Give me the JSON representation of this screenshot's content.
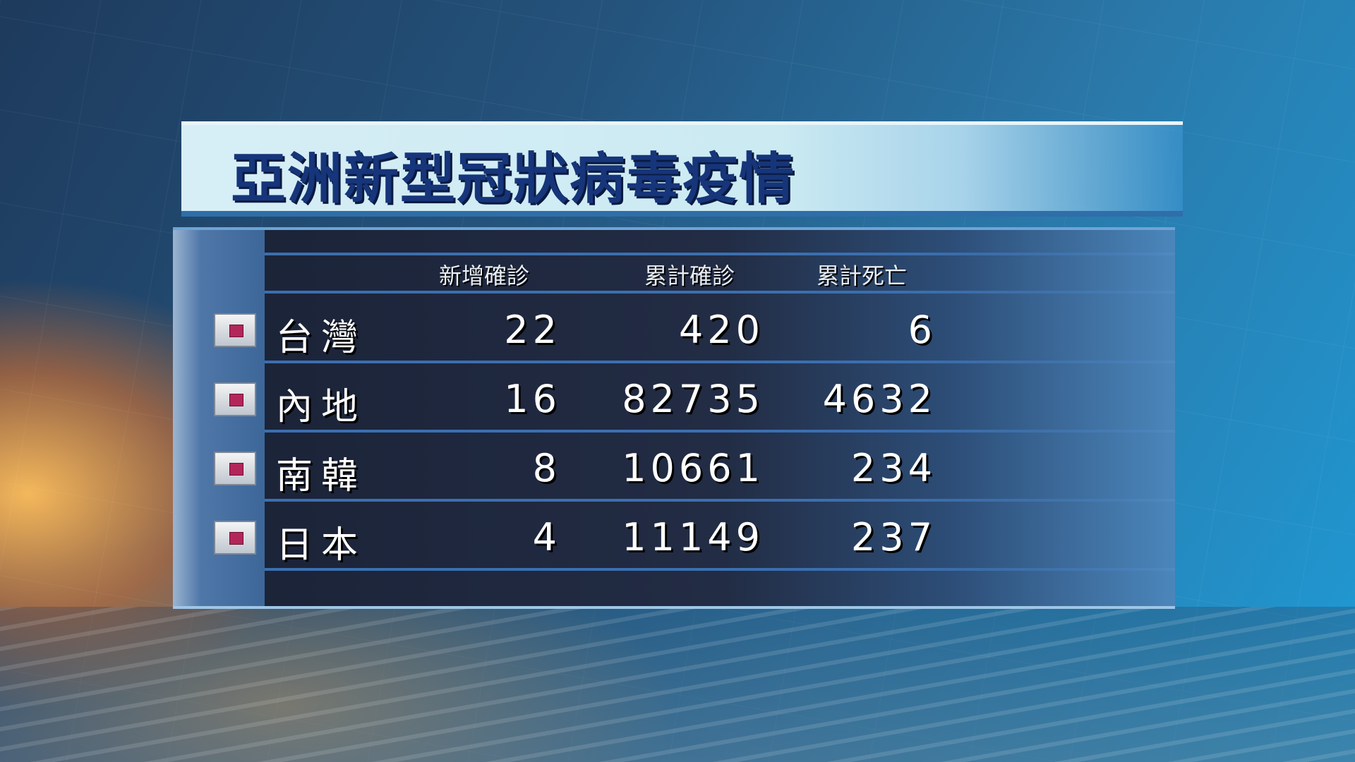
{
  "title": "亞洲新型冠狀病毒疫情",
  "colors": {
    "title_text": "#16357a",
    "bullet": "#b3265a",
    "panel": "#222c44"
  },
  "chart_data": {
    "type": "table",
    "title": "亞洲新型冠狀病毒疫情",
    "columns": [
      "",
      "新增確診",
      "累計確診",
      "累計死亡"
    ],
    "rows": [
      {
        "region": "台灣",
        "new": "22",
        "total": "420",
        "deaths": "6"
      },
      {
        "region": "內地",
        "new": "16",
        "total": "82735",
        "deaths": "4632"
      },
      {
        "region": "南韓",
        "new": "8",
        "total": "10661",
        "deaths": "234"
      },
      {
        "region": "日本",
        "new": "4",
        "total": "11149",
        "deaths": "237"
      }
    ]
  }
}
